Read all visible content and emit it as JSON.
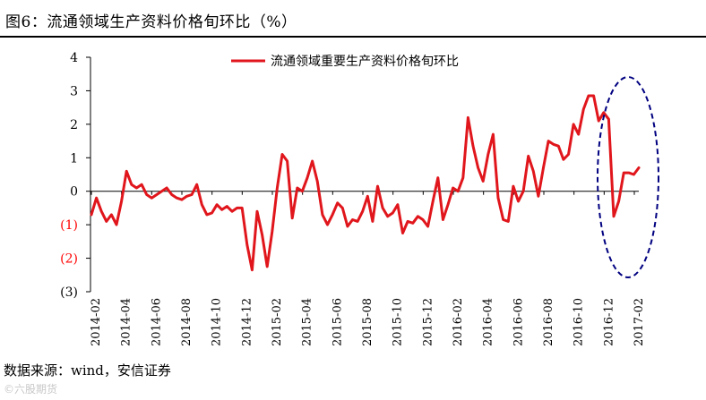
{
  "page": {
    "title": "图6：流通领域生产资料价格旬环比（%）",
    "source": "数据来源：wind，安信证券",
    "watermark": "©六股期货"
  },
  "chart_data": {
    "type": "line",
    "ylim": [
      -3,
      4
    ],
    "yticks": [
      {
        "value": 4,
        "label": "4",
        "color": "#000000"
      },
      {
        "value": 3,
        "label": "3",
        "color": "#000000"
      },
      {
        "value": 2,
        "label": "2",
        "color": "#000000"
      },
      {
        "value": 1,
        "label": "1",
        "color": "#000000"
      },
      {
        "value": 0,
        "label": "0",
        "color": "#000000"
      },
      {
        "value": -1,
        "label": "(1)",
        "color": "#ff0000"
      },
      {
        "value": -2,
        "label": "(2)",
        "color": "#ff0000"
      },
      {
        "value": -3,
        "label": "(3)",
        "color": "#000000"
      }
    ],
    "xtick_labels": [
      "2014-02",
      "2014-04",
      "2014-06",
      "2014-08",
      "2014-10",
      "2014-12",
      "2015-02",
      "2015-04",
      "2015-06",
      "2015-08",
      "2015-10",
      "2015-12",
      "2016-02",
      "2016-04",
      "2016-06",
      "2016-08",
      "2016-10",
      "2016-12",
      "2017-02"
    ],
    "legend_position": "top-center",
    "series": [
      {
        "name": "流通领域重要生产资料价格旬环比",
        "color": "#e0161c",
        "values": [
          -0.7,
          -0.2,
          -0.6,
          -0.9,
          -0.7,
          -1.0,
          -0.3,
          0.6,
          0.2,
          0.1,
          0.2,
          -0.1,
          -0.2,
          -0.1,
          0.0,
          0.1,
          -0.1,
          -0.2,
          -0.25,
          -0.15,
          -0.1,
          0.2,
          -0.4,
          -0.7,
          -0.65,
          -0.4,
          -0.55,
          -0.45,
          -0.6,
          -0.5,
          -0.5,
          -1.6,
          -2.35,
          -0.6,
          -1.3,
          -2.25,
          -1.2,
          0.1,
          1.1,
          0.9,
          -0.8,
          0.1,
          0.0,
          0.4,
          0.9,
          0.3,
          -0.7,
          -1.0,
          -0.7,
          -0.35,
          -0.5,
          -1.05,
          -0.85,
          -0.9,
          -0.6,
          -0.15,
          -0.9,
          0.15,
          -0.5,
          -0.75,
          -0.65,
          -0.4,
          -1.25,
          -0.9,
          -0.95,
          -0.75,
          -0.85,
          -1.05,
          -0.3,
          0.4,
          -0.85,
          -0.4,
          0.1,
          0.0,
          0.4,
          2.2,
          1.35,
          0.7,
          0.3,
          1.1,
          1.7,
          -0.2,
          -0.85,
          -0.9,
          0.15,
          -0.3,
          0.0,
          1.05,
          0.6,
          -0.15,
          0.7,
          1.5,
          1.4,
          1.35,
          0.95,
          1.1,
          2.0,
          1.7,
          2.45,
          2.85,
          2.85,
          2.1,
          2.35,
          2.15,
          -0.75,
          -0.3,
          0.55,
          0.55,
          0.5,
          0.7
        ]
      }
    ],
    "annotation": {
      "shape": "dashed-ellipse",
      "color": "#000080",
      "note": ""
    }
  }
}
